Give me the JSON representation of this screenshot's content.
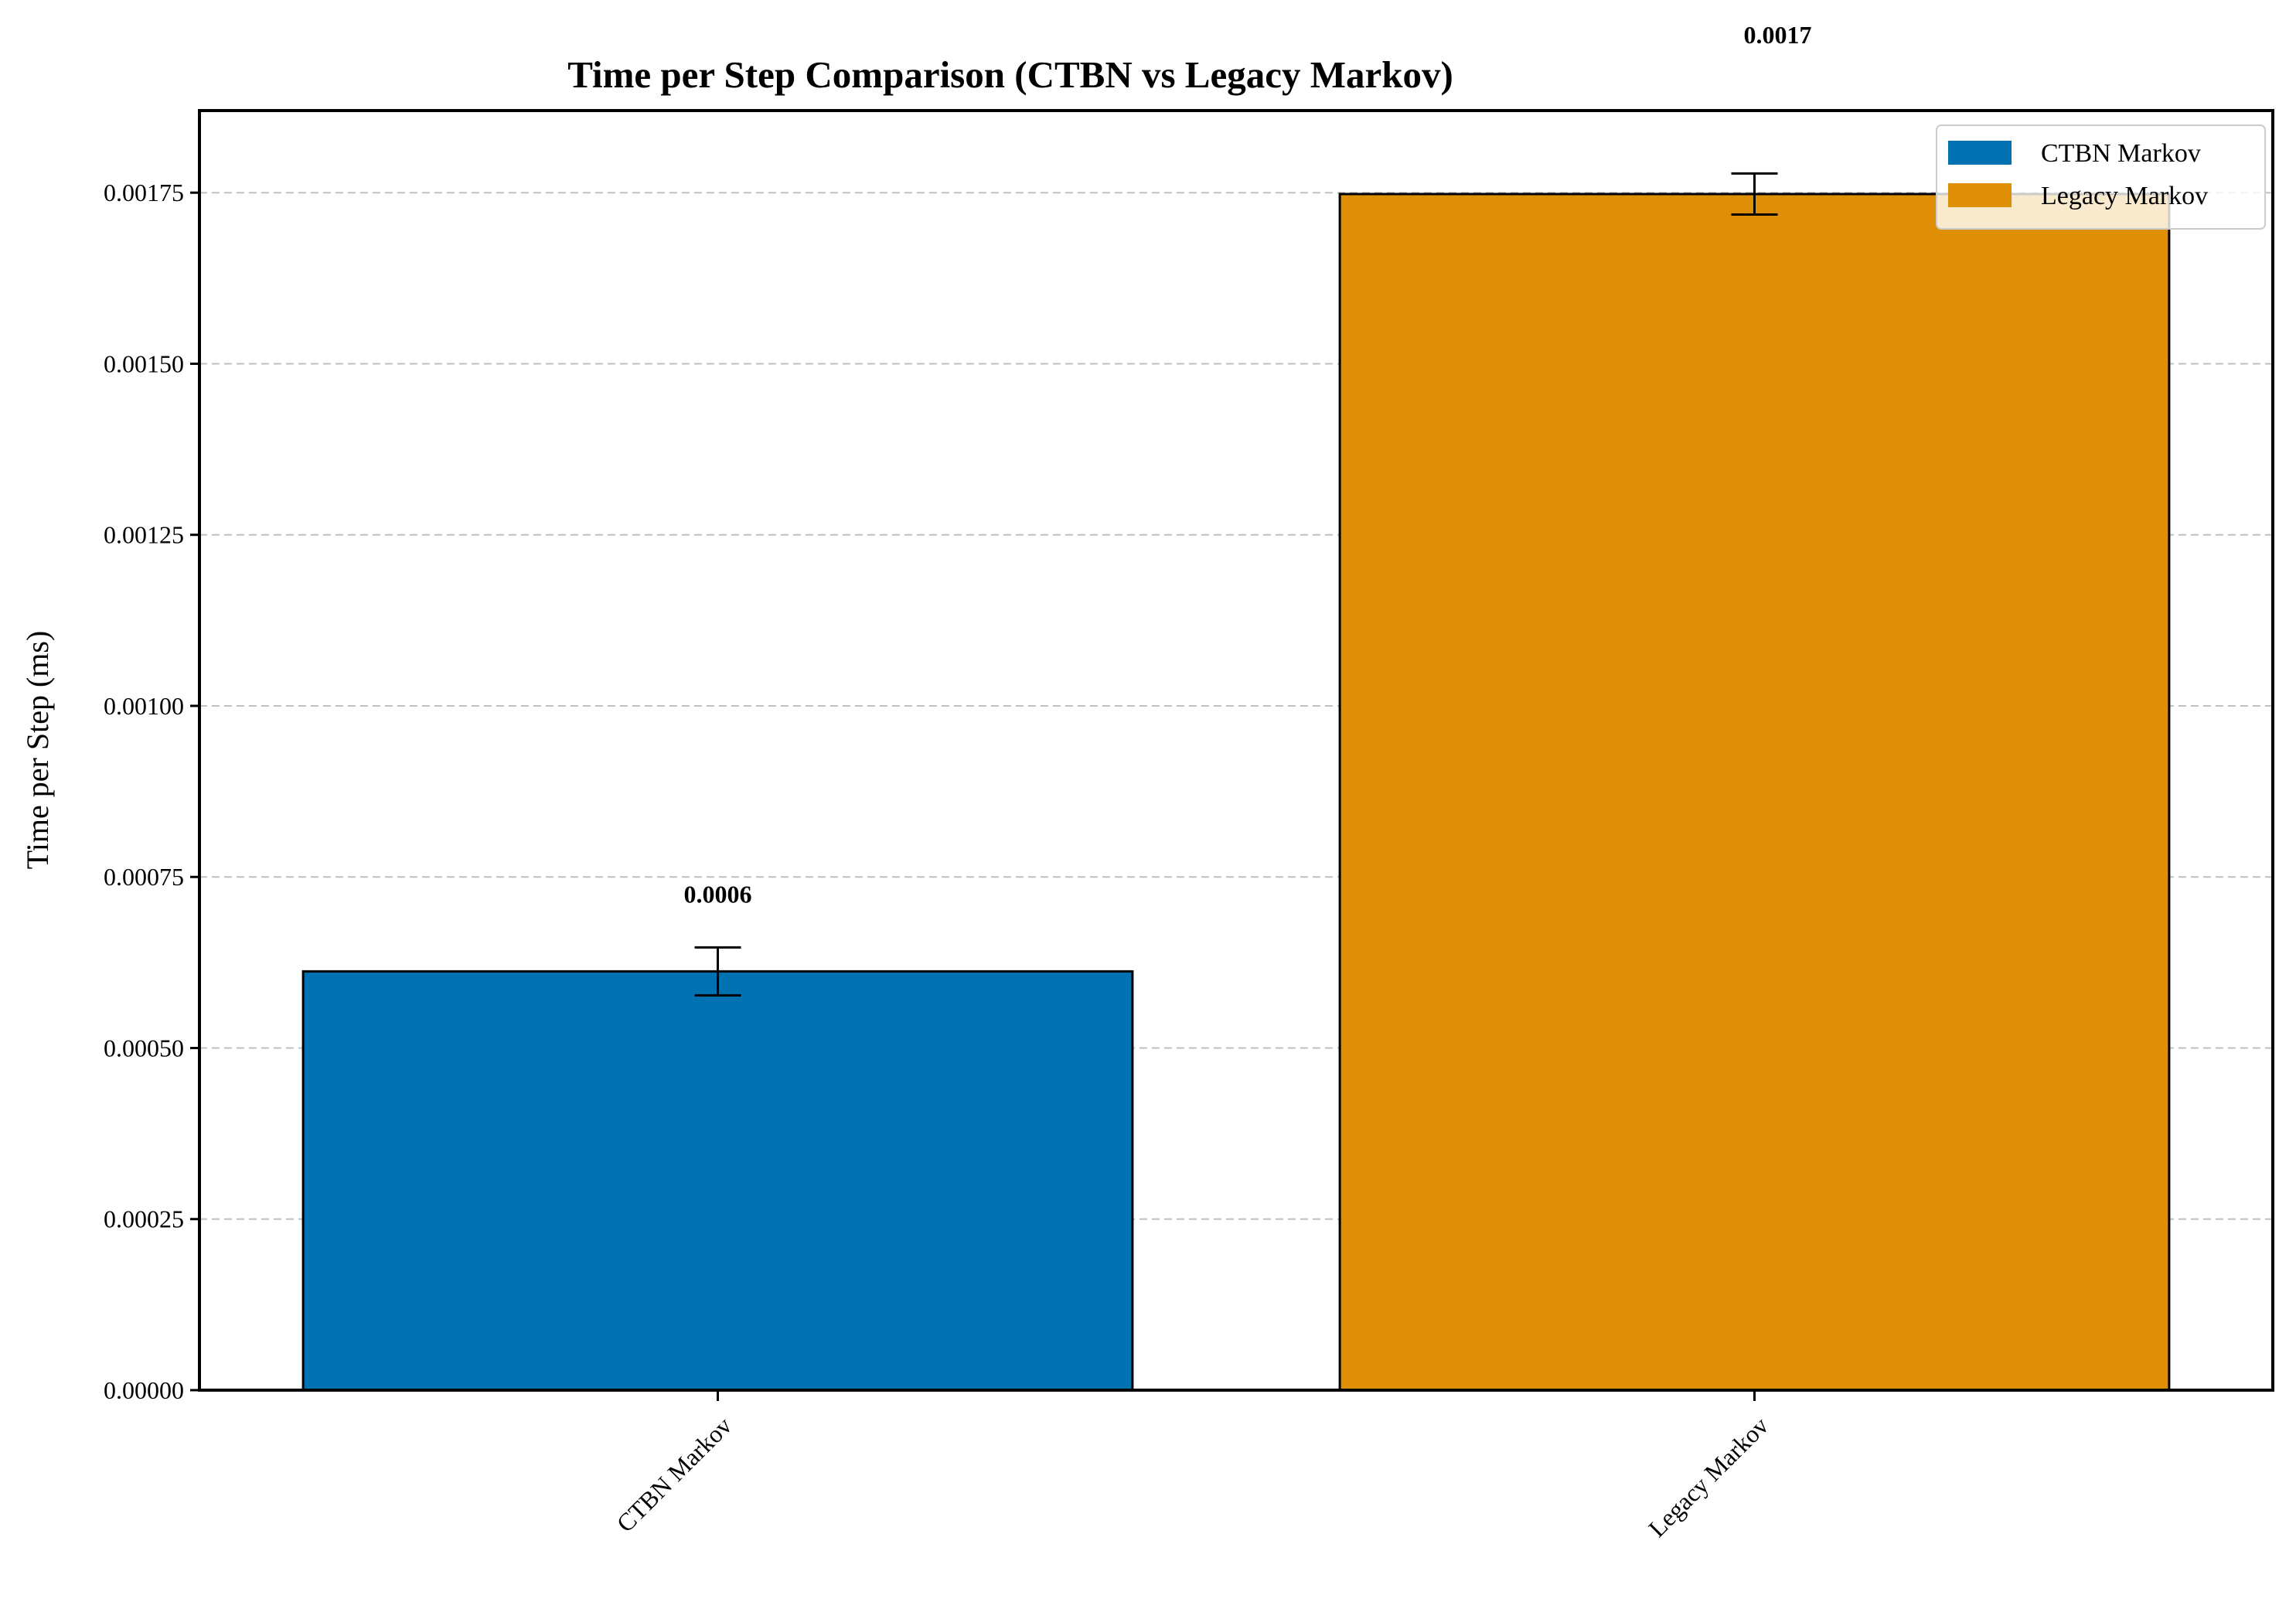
{
  "chart_data": {
    "type": "bar",
    "title": "Time per Step Comparison (CTBN vs Legacy Markov)",
    "xlabel": "",
    "ylabel": "Time per Step (ms)",
    "categories": [
      "CTBN Markov",
      "Legacy Markov"
    ],
    "values": [
      0.000612,
      0.001748
    ],
    "errors": [
      3.5e-05,
      3e-05
    ],
    "data_labels": [
      "0.0006",
      "0.0017"
    ],
    "colors": [
      "#0072b2",
      "#de8f05"
    ],
    "ylim": [
      0,
      0.00187
    ],
    "yticks": [
      0,
      0.00025,
      0.0005,
      0.00075,
      0.001,
      0.00125,
      0.0015,
      0.00175
    ],
    "ytick_labels": [
      "0.00000",
      "0.00025",
      "0.00050",
      "0.00075",
      "0.00100",
      "0.00125",
      "0.00150",
      "0.00175"
    ],
    "grid": "y-dashed",
    "legend": {
      "placement": "top-right",
      "entries": [
        "CTBN Markov",
        "Legacy Markov"
      ]
    }
  }
}
